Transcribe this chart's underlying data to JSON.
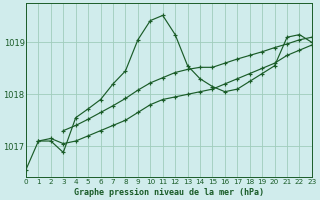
{
  "title": "Graphe pression niveau de la mer (hPa)",
  "bg_color": "#d0ecec",
  "grid_color": "#a0ccbb",
  "line_color": "#1a5c28",
  "xlim": [
    0,
    23
  ],
  "ylim": [
    1016.4,
    1019.75
  ],
  "yticks": [
    1017,
    1018,
    1019
  ],
  "xticks": [
    0,
    1,
    2,
    3,
    4,
    5,
    6,
    7,
    8,
    9,
    10,
    11,
    12,
    13,
    14,
    15,
    16,
    17,
    18,
    19,
    20,
    21,
    22,
    23
  ],
  "series": [
    {
      "x": [
        0,
        1,
        2,
        3,
        4,
        5,
        6,
        7,
        8,
        9,
        10,
        11,
        12,
        13,
        14,
        15,
        16,
        17,
        18,
        19,
        20,
        21,
        22,
        23
      ],
      "y": [
        1016.55,
        1017.1,
        1017.1,
        1016.88,
        1017.55,
        1017.72,
        1017.9,
        1018.2,
        1018.45,
        1019.05,
        1019.42,
        1019.52,
        1019.15,
        1018.55,
        1018.3,
        1018.15,
        1018.05,
        1018.1,
        1018.25,
        1018.4,
        1018.55,
        1019.1,
        1019.15,
        1019.0
      ]
    },
    {
      "x": [
        1,
        2,
        3,
        4,
        5,
        6,
        7,
        8,
        9,
        10,
        11,
        12,
        13,
        14,
        15,
        16,
        17,
        18,
        19,
        20,
        21,
        22,
        23
      ],
      "y": [
        1017.1,
        1017.15,
        1017.05,
        1017.1,
        1017.2,
        1017.3,
        1017.4,
        1017.5,
        1017.65,
        1017.8,
        1017.9,
        1017.95,
        1018.0,
        1018.05,
        1018.1,
        1018.2,
        1018.3,
        1018.4,
        1018.5,
        1018.6,
        1018.75,
        1018.85,
        1018.95
      ]
    },
    {
      "x": [
        3,
        4,
        5,
        6,
        7,
        8,
        9,
        10,
        11,
        12,
        13,
        14,
        15,
        16,
        17,
        18,
        19,
        20,
        21,
        22,
        23
      ],
      "y": [
        1017.3,
        1017.4,
        1017.52,
        1017.65,
        1017.78,
        1017.92,
        1018.08,
        1018.22,
        1018.32,
        1018.42,
        1018.48,
        1018.52,
        1018.52,
        1018.6,
        1018.68,
        1018.75,
        1018.82,
        1018.9,
        1018.97,
        1019.05,
        1019.1
      ]
    }
  ]
}
